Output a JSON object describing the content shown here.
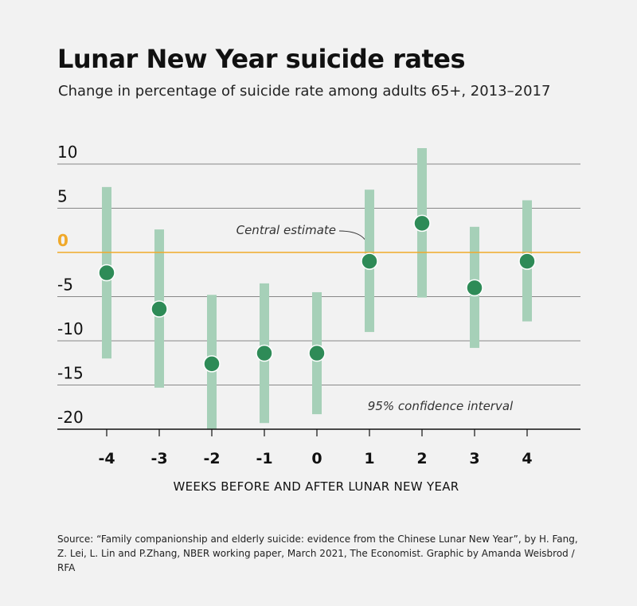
{
  "title": "Lunar New Year suicide rates",
  "subtitle": "Change in percentage of suicide rate among adults 65+, 2013–2017",
  "source": "Source: “Family companionship and elderly suicide: evidence from the Chinese Lunar New Year”, by H. Fang, Z. Lei, L. Lin and P.Zhang, NBER working paper, March 2021, The Economist. Graphic by Amanda Weisbrod / RFA",
  "colors": {
    "point": "#2e8b57",
    "interval": "#a6d0b8",
    "zero_line": "#f0a92a",
    "grid": "#888888"
  },
  "chart_data": {
    "type": "scatter",
    "subtype": "point estimate with 95% confidence interval bars",
    "xlabel": "WEEKS BEFORE AND AFTER LUNAR NEW YEAR",
    "ylabel": "",
    "categories": [
      "-4",
      "-3",
      "-2",
      "-1",
      "0",
      "1",
      "2",
      "3",
      "4"
    ],
    "values": [
      -2.3,
      -6.4,
      -12.6,
      -11.4,
      -11.4,
      -1.0,
      3.3,
      -4.0,
      -1.0
    ],
    "ci_low": [
      -12.0,
      -15.3,
      -20.0,
      -19.3,
      -18.3,
      -9.0,
      -5.1,
      -10.8,
      -7.8
    ],
    "ci_high": [
      7.4,
      2.6,
      -4.8,
      -3.5,
      -4.5,
      7.1,
      11.8,
      2.9,
      5.9
    ],
    "ylim": [
      -20,
      10
    ],
    "yticks": [
      "10",
      "5",
      "0",
      "-5",
      "-10",
      "-15",
      "-20"
    ],
    "grid": true,
    "annotations": {
      "point": "Central estimate",
      "interval": "95% confidence interval"
    }
  }
}
